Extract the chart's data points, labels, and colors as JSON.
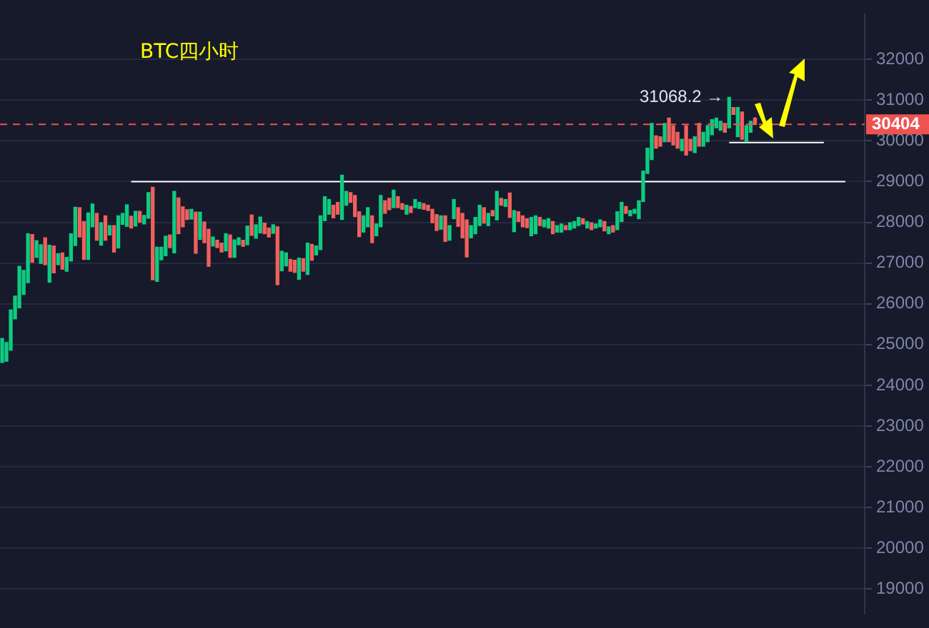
{
  "chart_data": {
    "type": "candlestick",
    "title": "BTC四小时",
    "categories": [
      null,
      null,
      null,
      null,
      null,
      null,
      null,
      null,
      null,
      null,
      null,
      null,
      null,
      null,
      null,
      null,
      null,
      null,
      null,
      null,
      null,
      null,
      null,
      null,
      null,
      null,
      null,
      null,
      null,
      null,
      null,
      null,
      null,
      null,
      null,
      null,
      null,
      null,
      null,
      null,
      null,
      null,
      null,
      null,
      null,
      null,
      null,
      null,
      null,
      null,
      null,
      null,
      null,
      null,
      null,
      null,
      null,
      null,
      null,
      null,
      null,
      null,
      null,
      null,
      null,
      null,
      null,
      null,
      null,
      null,
      null,
      null,
      null,
      null,
      null,
      null,
      null,
      null,
      null,
      null,
      null,
      null,
      null,
      null,
      null,
      null,
      null,
      null,
      null,
      null,
      null,
      null,
      null,
      null,
      null,
      null,
      null,
      null,
      null,
      null,
      null,
      null,
      null,
      null,
      null,
      null,
      null,
      null,
      null,
      null,
      null,
      null,
      null,
      null,
      null,
      null,
      null,
      null,
      null,
      null,
      null,
      null,
      null,
      null,
      null,
      null,
      null,
      null,
      null,
      null,
      null,
      null,
      null,
      null,
      null,
      null,
      null,
      null,
      null,
      null,
      null,
      null,
      null,
      null,
      null,
      null,
      null,
      null,
      null,
      null,
      null,
      null,
      null,
      null,
      null,
      null,
      null,
      null,
      null,
      null,
      null,
      null,
      null,
      null,
      null,
      null,
      null,
      null,
      null,
      null,
      null,
      null,
      null,
      null,
      null,
      null,
      null,
      null,
      null,
      null,
      null,
      null,
      null,
      null,
      null,
      null,
      null,
      null,
      null,
      null,
      null,
      null,
      null,
      null,
      null,
      null,
      null,
      null,
      null,
      null,
      null
    ],
    "ohlc": [
      [
        24560,
        25150,
        24560,
        25150
      ],
      [
        24590,
        25050,
        24590,
        25050
      ],
      [
        24860,
        25850,
        24860,
        25850
      ],
      [
        25630,
        26190,
        25630,
        26190
      ],
      [
        25900,
        26920,
        25900,
        26920
      ],
      [
        26230,
        26820,
        26230,
        26820
      ],
      [
        26520,
        27720,
        26520,
        27720
      ],
      [
        27700,
        27700,
        27020,
        27020
      ],
      [
        27140,
        27550,
        27140,
        27550
      ],
      [
        26990,
        27450,
        26990,
        27450
      ],
      [
        27620,
        27620,
        26960,
        26960
      ],
      [
        26530,
        27440,
        26530,
        27440
      ],
      [
        27420,
        27420,
        26760,
        26760
      ],
      [
        26960,
        27230,
        26960,
        27230
      ],
      [
        27250,
        27250,
        26850,
        26850
      ],
      [
        26800,
        27140,
        26800,
        27140
      ],
      [
        27050,
        27720,
        27050,
        27720
      ],
      [
        27430,
        28370,
        27430,
        28370
      ],
      [
        28360,
        28360,
        27640,
        27640
      ],
      [
        28020,
        28020,
        27090,
        27090
      ],
      [
        27090,
        28230,
        27090,
        28230
      ],
      [
        27890,
        28450,
        27890,
        28450
      ],
      [
        28220,
        28220,
        27560,
        27560
      ],
      [
        27440,
        27990,
        27440,
        27990
      ],
      [
        28160,
        28160,
        27560,
        27560
      ],
      [
        27690,
        27920,
        27690,
        27920
      ],
      [
        27920,
        27920,
        27270,
        27270
      ],
      [
        27370,
        28160,
        27370,
        28160
      ],
      [
        27950,
        28220,
        27950,
        28220
      ],
      [
        27900,
        28430,
        27900,
        28430
      ],
      [
        28150,
        28150,
        27860,
        27860
      ],
      [
        27910,
        28270,
        27910,
        28270
      ],
      [
        28270,
        28270,
        28000,
        28000
      ],
      [
        27960,
        28170,
        27960,
        28170
      ],
      [
        28100,
        28730,
        28100,
        28730
      ],
      [
        28860,
        28860,
        26590,
        26590
      ],
      [
        26550,
        27390,
        26550,
        27390
      ],
      [
        27080,
        27390,
        27080,
        27390
      ],
      [
        27180,
        27660,
        27180,
        27660
      ],
      [
        27690,
        27690,
        27380,
        27380
      ],
      [
        27250,
        28760,
        27250,
        28760
      ],
      [
        28600,
        28600,
        27720,
        27720
      ],
      [
        28380,
        28380,
        27890,
        27890
      ],
      [
        28310,
        28310,
        28070,
        28070
      ],
      [
        28080,
        28320,
        28080,
        28320
      ],
      [
        28250,
        28250,
        27240,
        27240
      ],
      [
        27580,
        28250,
        27580,
        28250
      ],
      [
        28010,
        28010,
        27500,
        27500
      ],
      [
        27830,
        27830,
        26920,
        26920
      ],
      [
        27420,
        27640,
        27420,
        27640
      ],
      [
        27560,
        27560,
        27380,
        27380
      ],
      [
        27490,
        27490,
        27270,
        27270
      ],
      [
        27300,
        27720,
        27300,
        27720
      ],
      [
        27690,
        27690,
        27140,
        27140
      ],
      [
        27140,
        27570,
        27140,
        27570
      ],
      [
        27450,
        27620,
        27450,
        27620
      ],
      [
        27560,
        27560,
        27410,
        27410
      ],
      [
        27450,
        27910,
        27450,
        27910
      ],
      [
        28180,
        28180,
        27680,
        27680
      ],
      [
        27610,
        27940,
        27610,
        27940
      ],
      [
        27740,
        28130,
        27740,
        28130
      ],
      [
        27980,
        27980,
        27720,
        27720
      ],
      [
        27860,
        27860,
        27640,
        27640
      ],
      [
        27730,
        27940,
        27730,
        27940
      ],
      [
        27890,
        27890,
        26470,
        26470
      ],
      [
        26810,
        27290,
        26810,
        27290
      ],
      [
        26930,
        27250,
        26930,
        27250
      ],
      [
        27090,
        27090,
        26800,
        26800
      ],
      [
        27070,
        27070,
        26770,
        26770
      ],
      [
        26600,
        27120,
        26600,
        27120
      ],
      [
        27110,
        27110,
        26800,
        26800
      ],
      [
        26720,
        27490,
        26720,
        27490
      ],
      [
        27460,
        27460,
        27070,
        27070
      ],
      [
        27200,
        27420,
        27200,
        27420
      ],
      [
        27330,
        28160,
        27330,
        28160
      ],
      [
        28040,
        28630,
        28040,
        28630
      ],
      [
        28200,
        28560,
        28200,
        28560
      ],
      [
        28420,
        28420,
        28110,
        28110
      ],
      [
        28490,
        28490,
        28200,
        28200
      ],
      [
        28070,
        29160,
        28070,
        29160
      ],
      [
        28420,
        28760,
        28420,
        28760
      ],
      [
        28730,
        28730,
        28490,
        28490
      ],
      [
        28660,
        28660,
        28140,
        28140
      ],
      [
        28260,
        28260,
        27650,
        27650
      ],
      [
        27760,
        28160,
        27760,
        28160
      ],
      [
        27890,
        28360,
        27890,
        28360
      ],
      [
        28160,
        28160,
        27500,
        27500
      ],
      [
        27670,
        27960,
        27670,
        27960
      ],
      [
        27890,
        28660,
        27890,
        28660
      ],
      [
        28530,
        28530,
        28220,
        28220
      ],
      [
        28590,
        28590,
        28310,
        28310
      ],
      [
        28360,
        28790,
        28360,
        28790
      ],
      [
        28630,
        28630,
        28360,
        28360
      ],
      [
        28460,
        28460,
        28320,
        28320
      ],
      [
        28200,
        28420,
        28200,
        28420
      ],
      [
        28390,
        28390,
        28240,
        28240
      ],
      [
        28360,
        28560,
        28360,
        28560
      ],
      [
        28340,
        28490,
        28340,
        28490
      ],
      [
        28460,
        28460,
        28320,
        28320
      ],
      [
        28420,
        28420,
        28290,
        28290
      ],
      [
        28320,
        28320,
        27990,
        27990
      ],
      [
        28190,
        28190,
        27800,
        27800
      ],
      [
        27830,
        28160,
        27830,
        28160
      ],
      [
        28160,
        28160,
        27530,
        27530
      ],
      [
        27560,
        27920,
        27560,
        27920
      ],
      [
        28090,
        28560,
        28090,
        28560
      ],
      [
        28360,
        28360,
        27900,
        27900
      ],
      [
        28220,
        28220,
        27620,
        27620
      ],
      [
        28060,
        28060,
        27150,
        27150
      ],
      [
        27620,
        27920,
        27620,
        27920
      ],
      [
        27720,
        28120,
        27720,
        28120
      ],
      [
        27920,
        28420,
        27920,
        28420
      ],
      [
        28360,
        28360,
        27980,
        27980
      ],
      [
        27920,
        28220,
        27920,
        28220
      ],
      [
        28290,
        28290,
        28160,
        28160
      ],
      [
        28060,
        28760,
        28060,
        28760
      ],
      [
        28590,
        28590,
        28420,
        28420
      ],
      [
        28390,
        28560,
        28390,
        28560
      ],
      [
        28720,
        28720,
        28120,
        28120
      ],
      [
        27770,
        28290,
        27770,
        28290
      ],
      [
        28260,
        28260,
        28020,
        28020
      ],
      [
        28160,
        28160,
        27890,
        27890
      ],
      [
        28090,
        28090,
        27870,
        27870
      ],
      [
        27670,
        28120,
        27670,
        28120
      ],
      [
        27720,
        28160,
        27720,
        28160
      ],
      [
        28120,
        28120,
        27920,
        27920
      ],
      [
        27890,
        28060,
        27890,
        28060
      ],
      [
        27860,
        28090,
        27860,
        28090
      ],
      [
        28020,
        28020,
        27720,
        27720
      ],
      [
        27760,
        27920,
        27760,
        27920
      ],
      [
        27760,
        27960,
        27760,
        27960
      ],
      [
        27920,
        27920,
        27820,
        27820
      ],
      [
        27820,
        27990,
        27820,
        27990
      ],
      [
        27860,
        28020,
        27860,
        28020
      ],
      [
        27920,
        28120,
        27920,
        28120
      ],
      [
        28090,
        28090,
        27960,
        27960
      ],
      [
        27860,
        28020,
        27860,
        28020
      ],
      [
        27990,
        27990,
        27820,
        27820
      ],
      [
        27860,
        27960,
        27860,
        27960
      ],
      [
        27890,
        28060,
        27890,
        28060
      ],
      [
        28020,
        28020,
        27790,
        27790
      ],
      [
        27720,
        27890,
        27720,
        27890
      ],
      [
        27920,
        27920,
        27760,
        27760
      ],
      [
        27820,
        28260,
        27820,
        28260
      ],
      [
        28020,
        28490,
        28020,
        28490
      ],
      [
        28390,
        28390,
        28220,
        28220
      ],
      [
        28160,
        28290,
        28160,
        28290
      ],
      [
        28220,
        28320,
        28220,
        28320
      ],
      [
        28090,
        28530,
        28090,
        28530
      ],
      [
        28510,
        29260,
        28510,
        29260
      ],
      [
        29200,
        29820,
        29200,
        29820
      ],
      [
        29540,
        30430,
        29540,
        30430
      ],
      [
        30120,
        30120,
        29820,
        29820
      ],
      [
        30100,
        30100,
        29870,
        29870
      ],
      [
        29980,
        30430,
        29980,
        30430
      ],
      [
        30560,
        30560,
        29980,
        29980
      ],
      [
        30370,
        30370,
        29900,
        29900
      ],
      [
        30210,
        30210,
        29820,
        29820
      ],
      [
        29760,
        30040,
        29760,
        30040
      ],
      [
        30370,
        30370,
        29650,
        29650
      ],
      [
        30040,
        30040,
        29760,
        29760
      ],
      [
        29710,
        30100,
        29710,
        30100
      ],
      [
        30430,
        30430,
        29870,
        29870
      ],
      [
        29870,
        30210,
        29870,
        30210
      ],
      [
        29980,
        30370,
        29980,
        30370
      ],
      [
        30150,
        30520,
        30150,
        30520
      ],
      [
        30320,
        30560,
        30320,
        30560
      ],
      [
        30260,
        30480,
        30260,
        30480
      ],
      [
        30430,
        30430,
        30210,
        30210
      ],
      [
        30320,
        31068.2,
        30320,
        31068.2
      ],
      [
        30820,
        30820,
        30650,
        30650
      ],
      [
        30100,
        30820,
        30100,
        30820
      ],
      [
        30710,
        30710,
        30040,
        30040
      ],
      [
        29980,
        30370,
        29980,
        30370
      ],
      [
        30210,
        30480,
        30210,
        30480
      ],
      [
        30560,
        30560,
        30400,
        30404
      ],
      null,
      null,
      null,
      null,
      null,
      null,
      null,
      null,
      null,
      null,
      null,
      null,
      null,
      null,
      null,
      null,
      null,
      null,
      null,
      null,
      null,
      null,
      null,
      null,
      null
    ],
    "colors": [
      "#0ecb81",
      "#0ecb81",
      "#0ecb81",
      "#0ecb81",
      "#0ecb81",
      "#0ecb81",
      "#0ecb81",
      "#f0605d",
      "#0ecb81",
      "#0ecb81",
      "#f0605d",
      "#0ecb81",
      "#f0605d",
      "#0ecb81",
      "#f0605d",
      "#0ecb81",
      "#0ecb81",
      "#0ecb81",
      "#f0605d",
      "#f0605d",
      "#0ecb81",
      "#0ecb81",
      "#f0605d",
      "#0ecb81",
      "#f0605d",
      "#0ecb81",
      "#f0605d",
      "#0ecb81",
      "#0ecb81",
      "#0ecb81",
      "#f0605d",
      "#0ecb81",
      "#f0605d",
      "#0ecb81",
      "#0ecb81",
      "#f0605d",
      "#0ecb81",
      "#0ecb81",
      "#0ecb81",
      "#f0605d",
      "#0ecb81",
      "#f0605d",
      "#f0605d",
      "#f0605d",
      "#0ecb81",
      "#f0605d",
      "#0ecb81",
      "#f0605d",
      "#f0605d",
      "#0ecb81",
      "#f0605d",
      "#f0605d",
      "#0ecb81",
      "#f0605d",
      "#0ecb81",
      "#0ecb81",
      "#f0605d",
      "#0ecb81",
      "#f0605d",
      "#0ecb81",
      "#0ecb81",
      "#f0605d",
      "#f0605d",
      "#0ecb81",
      "#f0605d",
      "#0ecb81",
      "#0ecb81",
      "#f0605d",
      "#f0605d",
      "#0ecb81",
      "#f0605d",
      "#0ecb81",
      "#f0605d",
      "#0ecb81",
      "#0ecb81",
      "#0ecb81",
      "#0ecb81",
      "#f0605d",
      "#f0605d",
      "#0ecb81",
      "#0ecb81",
      "#f0605d",
      "#f0605d",
      "#f0605d",
      "#0ecb81",
      "#0ecb81",
      "#f0605d",
      "#0ecb81",
      "#0ecb81",
      "#f0605d",
      "#f0605d",
      "#0ecb81",
      "#f0605d",
      "#f0605d",
      "#0ecb81",
      "#f0605d",
      "#0ecb81",
      "#0ecb81",
      "#f0605d",
      "#f0605d",
      "#f0605d",
      "#f0605d",
      "#0ecb81",
      "#f0605d",
      "#0ecb81",
      "#0ecb81",
      "#f0605d",
      "#f0605d",
      "#f0605d",
      "#0ecb81",
      "#0ecb81",
      "#0ecb81",
      "#f0605d",
      "#0ecb81",
      "#f0605d",
      "#0ecb81",
      "#f0605d",
      "#0ecb81",
      "#f0605d",
      "#0ecb81",
      "#f0605d",
      "#f0605d",
      "#f0605d",
      "#0ecb81",
      "#0ecb81",
      "#f0605d",
      "#0ecb81",
      "#0ecb81",
      "#f0605d",
      "#0ecb81",
      "#0ecb81",
      "#f0605d",
      "#0ecb81",
      "#0ecb81",
      "#0ecb81",
      "#f0605d",
      "#0ecb81",
      "#f0605d",
      "#0ecb81",
      "#0ecb81",
      "#f0605d",
      "#0ecb81",
      "#f0605d",
      "#0ecb81",
      "#0ecb81",
      "#f0605d",
      "#0ecb81",
      "#0ecb81",
      "#0ecb81",
      "#0ecb81",
      "#0ecb81",
      "#0ecb81",
      "#f0605d",
      "#f0605d",
      "#0ecb81",
      "#f0605d",
      "#f0605d",
      "#f0605d",
      "#0ecb81",
      "#f0605d",
      "#f0605d",
      "#0ecb81",
      "#f0605d",
      "#0ecb81",
      "#0ecb81",
      "#0ecb81",
      "#0ecb81",
      "#0ecb81",
      "#f0605d",
      "#0ecb81",
      "#f0605d",
      "#0ecb81",
      "#f0605d",
      "#0ecb81",
      "#0ecb81",
      "#f0605d",
      null,
      null,
      null,
      null,
      null,
      null,
      null,
      null,
      null,
      null,
      null,
      null,
      null,
      null,
      null,
      null,
      null,
      null,
      null,
      null,
      null,
      null,
      null,
      null,
      null
    ],
    "series": [
      {
        "type": "line",
        "color": "#ffffff",
        "values": [
          null,
          null,
          null,
          null,
          null,
          null,
          null,
          null,
          null,
          null,
          null,
          null,
          null,
          null,
          null,
          null,
          null,
          null,
          null,
          null,
          null,
          null,
          null,
          null,
          null,
          null,
          null,
          null,
          null,
          null,
          29000,
          29000,
          29000,
          29000,
          29000,
          29000,
          29000,
          29000,
          29000,
          29000,
          29000,
          29000,
          29000,
          29000,
          29000,
          29000,
          29000,
          29000,
          29000,
          29000,
          29000,
          29000,
          29000,
          29000,
          29000,
          29000,
          29000,
          29000,
          29000,
          29000,
          29000,
          29000,
          29000,
          29000,
          29000,
          29000,
          29000,
          29000,
          29000,
          29000,
          29000,
          29000,
          29000,
          29000,
          29000,
          29000,
          29000,
          29000,
          29000,
          29000,
          29000,
          29000,
          29000,
          29000,
          29000,
          29000,
          29000,
          29000,
          29000,
          29000,
          29000,
          29000,
          29000,
          29000,
          29000,
          29000,
          29000,
          29000,
          29000,
          29000,
          29000,
          29000,
          29000,
          29000,
          29000,
          29000,
          29000,
          29000,
          29000,
          29000,
          29000,
          29000,
          29000,
          29000,
          29000,
          29000,
          29000,
          29000,
          29000,
          29000,
          29000,
          29000,
          29000,
          29000,
          29000,
          29000,
          29000,
          29000,
          29000,
          29000,
          29000,
          29000,
          29000,
          29000,
          29000,
          29000,
          29000,
          29000,
          29000,
          29000,
          29000,
          29000,
          29000,
          29000,
          29000,
          29000,
          29000,
          29000,
          29000,
          29000,
          29000,
          29000,
          29000,
          29000,
          29000,
          29000,
          29000,
          29000,
          29000,
          29000,
          29000,
          29000,
          29000,
          29000,
          29000,
          29000,
          29000,
          29000,
          29000,
          29000,
          29000,
          29000,
          29000,
          29000,
          29000,
          29000,
          29000,
          29000,
          29000,
          29000,
          29000,
          29000,
          29000,
          29000,
          29000,
          29000,
          29000,
          29000,
          29000,
          29000,
          29000,
          29000,
          29000,
          29000,
          29000,
          29000,
          29000,
          null,
          null,
          null,
          null
        ]
      },
      {
        "type": "line",
        "color": "#ffffff",
        "values": [
          null,
          null,
          null,
          null,
          null,
          null,
          null,
          null,
          null,
          null,
          null,
          null,
          null,
          null,
          null,
          null,
          null,
          null,
          null,
          null,
          null,
          null,
          null,
          null,
          null,
          null,
          null,
          null,
          null,
          null,
          null,
          null,
          null,
          null,
          null,
          null,
          null,
          null,
          null,
          null,
          null,
          null,
          null,
          null,
          null,
          null,
          null,
          null,
          null,
          null,
          null,
          null,
          null,
          null,
          null,
          null,
          null,
          null,
          null,
          null,
          null,
          null,
          null,
          null,
          null,
          null,
          null,
          null,
          null,
          null,
          null,
          null,
          null,
          null,
          null,
          null,
          null,
          null,
          null,
          null,
          null,
          null,
          null,
          null,
          null,
          null,
          null,
          null,
          null,
          null,
          null,
          null,
          null,
          null,
          null,
          null,
          null,
          null,
          null,
          null,
          null,
          null,
          null,
          null,
          null,
          null,
          null,
          null,
          null,
          null,
          null,
          null,
          null,
          null,
          null,
          null,
          null,
          null,
          null,
          null,
          null,
          null,
          null,
          null,
          null,
          null,
          null,
          null,
          null,
          null,
          null,
          null,
          null,
          null,
          null,
          null,
          null,
          null,
          null,
          null,
          null,
          null,
          null,
          null,
          null,
          null,
          null,
          null,
          null,
          null,
          null,
          null,
          null,
          null,
          null,
          null,
          null,
          null,
          null,
          null,
          null,
          null,
          null,
          null,
          null,
          null,
          null,
          null,
          null,
          29960,
          29960,
          29960,
          29960,
          29960,
          29960,
          29960,
          29960,
          29960,
          29960,
          29960,
          29960,
          29960,
          29960,
          29960,
          29960,
          29960,
          29960,
          29960,
          29960,
          29960,
          29960,
          29960,
          null,
          null,
          null,
          null,
          null,
          null,
          null,
          null,
          null
        ]
      }
    ],
    "ylim": [
      18400,
      33100
    ],
    "yticks": [
      19000,
      20000,
      21000,
      22000,
      23000,
      24000,
      25000,
      26000,
      27000,
      28000,
      29000,
      30000,
      31000,
      32000
    ],
    "ref_lines": [
      {
        "axis": "y",
        "value": 30404,
        "label": "30404",
        "color": "#ef5350",
        "line_style": "dashed"
      }
    ],
    "annotations": [
      "31068.2 →"
    ],
    "grid": "y",
    "tick_labels": "y",
    "legend": false,
    "marker": "none"
  }
}
